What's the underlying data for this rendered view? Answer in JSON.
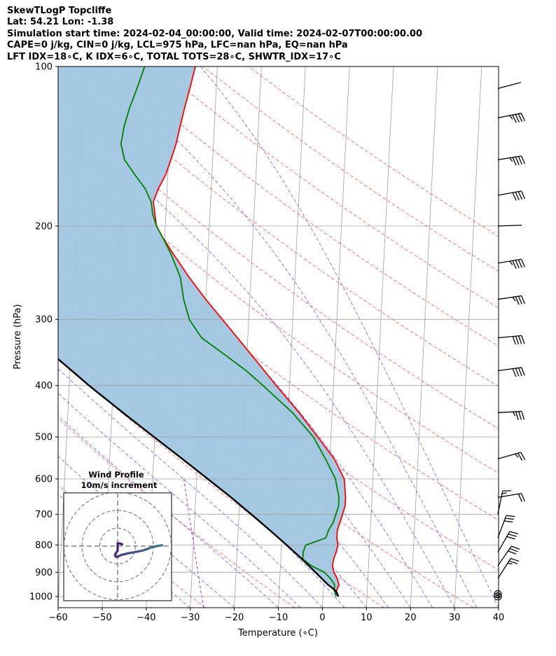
{
  "header": {
    "line1": "SkewTLogP Topcliffe",
    "line2": "Lat: 54.21   Lon: -1.38",
    "line3": "Simulation start time: 2024-02-04_00:00:00, Valid time: 2024-02-07T00:00:00.00",
    "line4": "CAPE=0 j/kg, CIN=0 j/kg, LCL=975 hPa, LFC=nan hPa, EQ=nan hPa",
    "line5": "LFT IDX=18∘C, K IDX=6∘C, TOTAL TOTS=28∘C, SHWTR_IDX=17∘C"
  },
  "chart_data": {
    "type": "skewt-logp",
    "xlabel": "Temperature (∘C)",
    "ylabel": "Pressure (hPa)",
    "xlim": [
      -60,
      40
    ],
    "ylim": [
      1050,
      100
    ],
    "x_ticks": [
      "−60",
      "−50",
      "−40",
      "−30",
      "−20",
      "−10",
      "0",
      "10",
      "20",
      "30",
      "40"
    ],
    "x_tick_values": [
      -60,
      -50,
      -40,
      -30,
      -20,
      -10,
      0,
      10,
      20,
      30,
      40
    ],
    "y_ticks": [
      "1000",
      "900",
      "800",
      "700",
      "600",
      "500",
      "400",
      "300",
      "200",
      "100"
    ],
    "y_tick_values": [
      1000,
      900,
      800,
      700,
      600,
      500,
      400,
      300,
      200,
      100
    ],
    "y_scale": "log",
    "grid": true,
    "colors": {
      "temperature": "#ff0000",
      "dewpoint": "#008000",
      "parcel": "#000000",
      "fill": "#a0c6e0",
      "dry_adiabat": "#ff5555",
      "moist_adiabat": "#5555ff",
      "isotherm": "#a0a0a0",
      "mixing_ratio": "#9a3ccf"
    },
    "series": [
      {
        "key": "temperature",
        "points": [
          [
            1000,
            3.5
          ],
          [
            975,
            3.0
          ],
          [
            950,
            3.5
          ],
          [
            925,
            3.0
          ],
          [
            900,
            2.2
          ],
          [
            875,
            1.8
          ],
          [
            850,
            2.0
          ],
          [
            825,
            2.5
          ],
          [
            800,
            2.8
          ],
          [
            775,
            2.5
          ],
          [
            750,
            2.5
          ],
          [
            725,
            3.0
          ],
          [
            700,
            3.5
          ],
          [
            675,
            4.0
          ],
          [
            650,
            4.0
          ],
          [
            600,
            3.5
          ],
          [
            550,
            1.0
          ],
          [
            500,
            -3.0
          ],
          [
            450,
            -7.5
          ],
          [
            400,
            -13.0
          ],
          [
            350,
            -19.0
          ],
          [
            300,
            -26.0
          ],
          [
            275,
            -30.0
          ],
          [
            250,
            -34.0
          ],
          [
            225,
            -38.0
          ],
          [
            210,
            -40.5
          ],
          [
            200,
            -42.0
          ],
          [
            190,
            -42.5
          ],
          [
            180,
            -43.0
          ],
          [
            170,
            -42.0
          ],
          [
            160,
            -40.5
          ],
          [
            150,
            -39.5
          ],
          [
            140,
            -38.5
          ],
          [
            130,
            -37.8
          ],
          [
            120,
            -37.0
          ],
          [
            110,
            -36.0
          ],
          [
            100,
            -35.0
          ]
        ]
      },
      {
        "key": "dewpoint",
        "points": [
          [
            1000,
            3.0
          ],
          [
            975,
            2.5
          ],
          [
            950,
            2.5
          ],
          [
            925,
            1.5
          ],
          [
            900,
            0.0
          ],
          [
            875,
            -3.0
          ],
          [
            850,
            -5.0
          ],
          [
            825,
            -5.0
          ],
          [
            800,
            -4.5
          ],
          [
            775,
            0.0
          ],
          [
            750,
            0.5
          ],
          [
            725,
            1.5
          ],
          [
            700,
            2.0
          ],
          [
            675,
            2.5
          ],
          [
            650,
            2.5
          ],
          [
            600,
            1.5
          ],
          [
            550,
            -1.0
          ],
          [
            500,
            -4.0
          ],
          [
            450,
            -9.0
          ],
          [
            400,
            -16.0
          ],
          [
            375,
            -20.0
          ],
          [
            350,
            -25.0
          ],
          [
            325,
            -30.5
          ],
          [
            300,
            -33.5
          ],
          [
            275,
            -35.0
          ],
          [
            250,
            -36.0
          ],
          [
            225,
            -38.5
          ],
          [
            210,
            -40.5
          ],
          [
            200,
            -42.0
          ],
          [
            190,
            -43.0
          ],
          [
            180,
            -43.5
          ],
          [
            170,
            -45.0
          ],
          [
            160,
            -47.5
          ],
          [
            150,
            -50.0
          ],
          [
            140,
            -51.0
          ],
          [
            130,
            -50.5
          ],
          [
            120,
            -49.5
          ],
          [
            110,
            -48.0
          ],
          [
            100,
            -46.5
          ]
        ]
      },
      {
        "key": "parcel",
        "points": [
          [
            1000,
            3.5
          ],
          [
            975,
            2.8
          ],
          [
            950,
            1.0
          ],
          [
            900,
            -2.0
          ],
          [
            850,
            -5.2
          ],
          [
            800,
            -8.8
          ],
          [
            750,
            -12.8
          ],
          [
            700,
            -17.2
          ],
          [
            650,
            -22.0
          ],
          [
            600,
            -27.5
          ],
          [
            550,
            -33.5
          ],
          [
            500,
            -40.2
          ],
          [
            450,
            -47.5
          ],
          [
            400,
            -55.5
          ],
          [
            350,
            -64.0
          ],
          [
            300,
            -74.0
          ],
          [
            250,
            -84.5
          ],
          [
            200,
            -97.0
          ],
          [
            150,
            -111.0
          ],
          [
            100,
            -130.0
          ]
        ]
      }
    ],
    "wind_barbs": [
      {
        "p": 1000,
        "u": 0,
        "v": 0,
        "calm": true
      },
      {
        "p": 990,
        "u": 0,
        "v": 0,
        "calm": true
      },
      {
        "p": 925,
        "u": -7,
        "v": -11
      },
      {
        "p": 875,
        "u": -9,
        "v": -13
      },
      {
        "p": 825,
        "u": -8,
        "v": -14
      },
      {
        "p": 775,
        "u": -6,
        "v": -16
      },
      {
        "p": 700,
        "u": -2,
        "v": -10
      },
      {
        "p": 650,
        "u": -12,
        "v": -2
      },
      {
        "p": 550,
        "u": -14,
        "v": -4
      },
      {
        "p": 450,
        "u": -18,
        "v": -1
      },
      {
        "p": 375,
        "u": -22,
        "v": -3
      },
      {
        "p": 325,
        "u": -22,
        "v": -2
      },
      {
        "p": 275,
        "u": -20,
        "v": -3
      },
      {
        "p": 235,
        "u": -24,
        "v": -4
      },
      {
        "p": 200,
        "u": -27,
        "v": -1
      },
      {
        "p": 175,
        "u": -22,
        "v": -4
      },
      {
        "p": 150,
        "u": -24,
        "v": -4
      },
      {
        "p": 125,
        "u": -25,
        "v": -5
      },
      {
        "p": 110,
        "u": -27,
        "v": -7
      }
    ],
    "inset": {
      "title_line1": "Wind Profile",
      "title_line2": "10m/s increment",
      "rings": [
        10,
        20,
        30
      ],
      "hodograph": [
        [
          2.5,
          1.0
        ],
        [
          1.0,
          1.5
        ],
        [
          0.0,
          1.5
        ],
        [
          0.0,
          -2.5
        ],
        [
          -1.0,
          -4.0
        ],
        [
          -1.5,
          -5.0
        ],
        [
          -1.0,
          -6.0
        ],
        [
          0.0,
          -6.0
        ],
        [
          2.0,
          -5.0
        ],
        [
          4.0,
          -4.5
        ],
        [
          6.0,
          -4.0
        ],
        [
          9.0,
          -3.5
        ],
        [
          11.5,
          -3.0
        ],
        [
          14.0,
          -2.5
        ],
        [
          17.0,
          -1.5
        ],
        [
          19.5,
          -0.5
        ],
        [
          22.0,
          0.0
        ],
        [
          25.0,
          0.5
        ]
      ]
    }
  }
}
